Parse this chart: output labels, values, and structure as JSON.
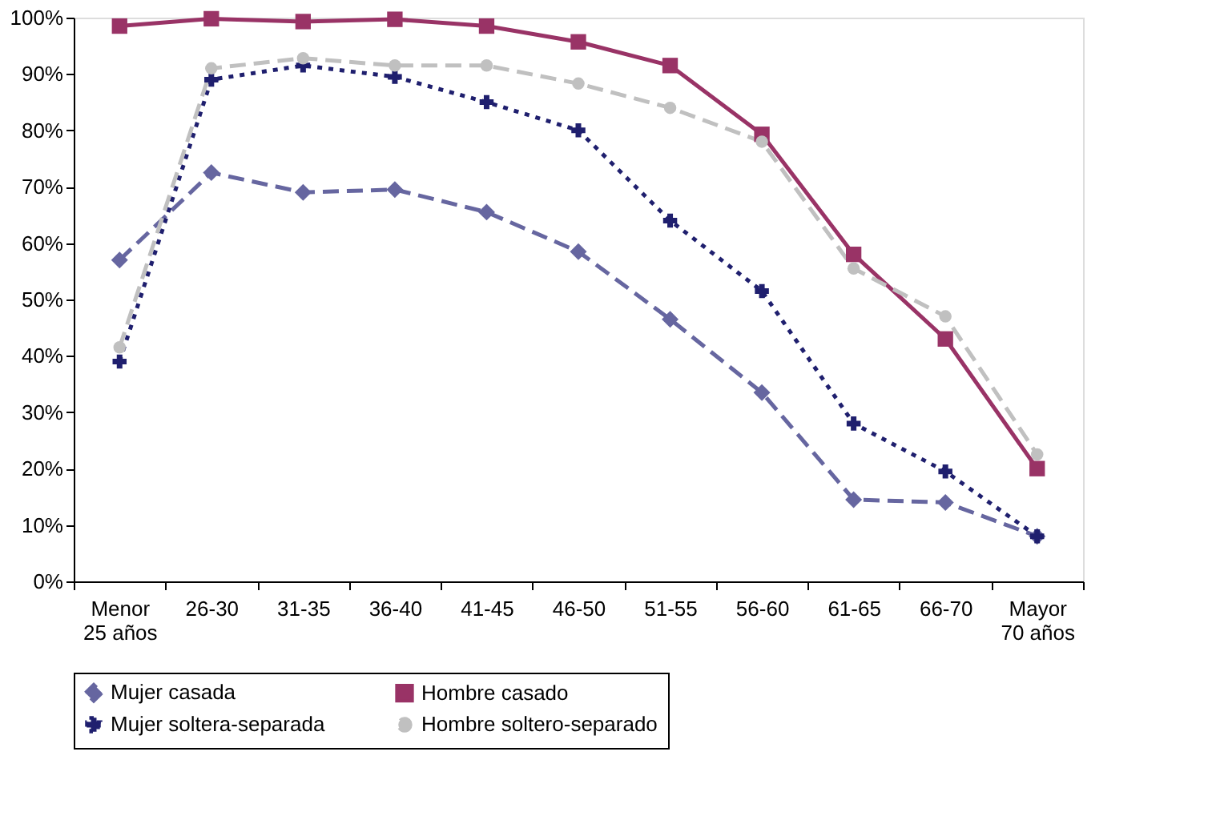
{
  "chart_data": {
    "type": "line",
    "categories": [
      "Menor 25 años",
      "26-30",
      "31-35",
      "36-40",
      "41-45",
      "46-50",
      "51-55",
      "56-60",
      "61-65",
      "66-70",
      "Mayor 70 años"
    ],
    "ylim": [
      0,
      100
    ],
    "yticks": [
      {
        "value": 0,
        "label": "0%"
      },
      {
        "value": 10,
        "label": "10%"
      },
      {
        "value": 20,
        "label": "20%"
      },
      {
        "value": 30,
        "label": "30%"
      },
      {
        "value": 40,
        "label": "40%"
      },
      {
        "value": 50,
        "label": "50%"
      },
      {
        "value": 60,
        "label": "60%"
      },
      {
        "value": 70,
        "label": "70%"
      },
      {
        "value": 80,
        "label": "80%"
      },
      {
        "value": 90,
        "label": "90%"
      },
      {
        "value": 100,
        "label": "100%"
      }
    ],
    "grid": false,
    "legend": "bottom",
    "series": [
      {
        "name": "Mujer casada",
        "color": "#6666a0",
        "marker": "diamond",
        "line_style": "dashed",
        "values": [
          57,
          72.5,
          69,
          69.5,
          65.5,
          58.5,
          46.5,
          33.5,
          14.5,
          14,
          8
        ]
      },
      {
        "name": "Hombre casado",
        "color": "#993366",
        "marker": "square",
        "line_style": "solid",
        "values": [
          98.5,
          99.8,
          99.3,
          99.7,
          98.5,
          95.7,
          91.5,
          79.3,
          58,
          43,
          20
        ]
      },
      {
        "name": "Mujer soltera-separada",
        "color": "#1f1f6e",
        "marker": "cross",
        "line_style": "dotted",
        "values": [
          39,
          89,
          91.5,
          89.5,
          85,
          80,
          64,
          51.5,
          28,
          19.5,
          8
        ]
      },
      {
        "name": "Hombre soltero-separado",
        "color": "#c0c0c0",
        "marker": "circle",
        "line_style": "dashed",
        "values": [
          41.5,
          91,
          92.8,
          91.5,
          91.5,
          88.3,
          84,
          78,
          55.5,
          47,
          22.5
        ]
      }
    ]
  }
}
